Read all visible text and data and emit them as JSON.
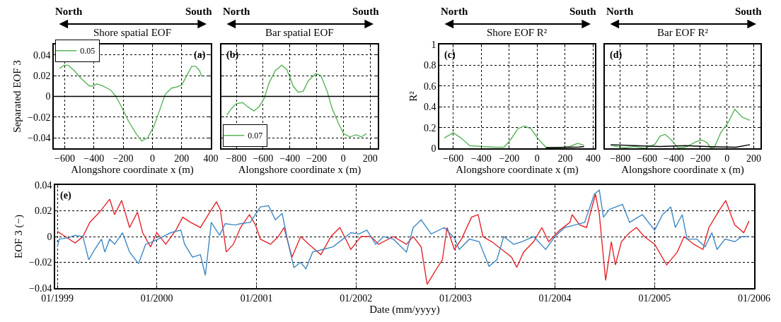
{
  "chart_data": [
    {
      "type": "line",
      "title": "Shore spatial EOF",
      "annotations": [
        "North",
        "South",
        "(a)"
      ],
      "xlabel": "Alongshore coordinate x (m)",
      "ylabel": "Separated EOF 3",
      "xlim": [
        -675,
        400
      ],
      "xticks": [
        -600,
        -400,
        -200,
        0,
        200,
        400
      ],
      "ylim": [
        -0.05,
        0.05
      ],
      "yticks": [
        -0.04,
        -0.02,
        0,
        0.02,
        0.04
      ],
      "grid": true,
      "legend": "top left",
      "ref_lines": [
        {
          "axis": "y",
          "value": 0,
          "color": "#000000"
        }
      ],
      "series": [
        {
          "name": "0.05",
          "color": "#5ab45a",
          "x": [
            -635,
            -605,
            -576,
            -536,
            -493,
            -432,
            -406,
            -380,
            -337,
            -285,
            -250,
            -215,
            -163,
            -111,
            -73,
            -33,
            10,
            53,
            88,
            131,
            166,
            201,
            235,
            270,
            296,
            322,
            339
          ],
          "values": [
            0.027,
            0.03,
            0.03,
            0.025,
            0.018,
            0.01,
            0.01,
            0.012,
            0.01,
            0.006,
            0.0,
            -0.009,
            -0.024,
            -0.036,
            -0.043,
            -0.04,
            -0.029,
            -0.012,
            0.002,
            0.008,
            0.009,
            0.011,
            0.02,
            0.029,
            0.029,
            0.025,
            0.019
          ]
        }
      ]
    },
    {
      "type": "line",
      "title": "Bar spatial EOF",
      "annotations": [
        "North",
        "South",
        "(b)"
      ],
      "xlabel": "Alongshore coordinate x (m)",
      "xlim": [
        -911,
        257
      ],
      "xticks": [
        -800,
        -600,
        -400,
        -200,
        0,
        200
      ],
      "ylim": [
        -0.05,
        0.05
      ],
      "yticks": [
        -0.04,
        -0.02,
        0,
        0.02,
        0.04
      ],
      "grid": true,
      "legend": "bottom left",
      "tick_labels": "x",
      "ref_lines": [
        {
          "axis": "y",
          "value": 0,
          "color": "#000000"
        }
      ],
      "series": [
        {
          "name": "0.07",
          "color": "#5ab45a",
          "x": [
            -870,
            -838,
            -800,
            -753,
            -715,
            -668,
            -630,
            -592,
            -555,
            -508,
            -460,
            -423,
            -375,
            -338,
            -300,
            -262,
            -206,
            -168,
            -121,
            -83,
            -36,
            2,
            49,
            96,
            134,
            172
          ],
          "values": [
            -0.018,
            -0.012,
            -0.007,
            -0.006,
            -0.01,
            -0.014,
            -0.01,
            -0.002,
            0.013,
            0.025,
            0.03,
            0.026,
            0.01,
            0.004,
            0.005,
            0.015,
            0.022,
            0.02,
            0.005,
            -0.012,
            -0.026,
            -0.036,
            -0.039,
            -0.037,
            -0.039,
            -0.036
          ]
        }
      ]
    },
    {
      "type": "line",
      "title": "Shore EOF R²",
      "annotations": [
        "North",
        "South",
        "(c)"
      ],
      "xlabel": "Alongshore coordinate x (m)",
      "ylabel": "R²",
      "xlim": [
        -700,
        413
      ],
      "xticks": [
        -600,
        -400,
        -200,
        0,
        200,
        400
      ],
      "ylim": [
        0,
        1
      ],
      "yticks": [
        0,
        0.2,
        0.4,
        0.6,
        0.8,
        1
      ],
      "grid": true,
      "series": [
        {
          "color": "#5ab45a",
          "x": [
            -664,
            -600,
            -546,
            -482,
            -391,
            -301,
            -237,
            -192,
            -137,
            -92,
            -46,
            8,
            62,
            153,
            235,
            289,
            335
          ],
          "values": [
            0.1,
            0.15,
            0.1,
            0.025,
            0.017,
            0.01,
            0.01,
            0.08,
            0.19,
            0.215,
            0.19,
            0.09,
            0.01,
            0.005,
            0.017,
            0.047,
            0.03
          ]
        },
        {
          "color": "#000000",
          "x": [
            62,
            150,
            244,
            300,
            335
          ],
          "values": [
            0.005,
            0.008,
            0.01,
            0.012,
            0.017
          ]
        }
      ]
    },
    {
      "type": "line",
      "title": "Bar EOF R²",
      "annotations": [
        "North",
        "South",
        "(d)"
      ],
      "xlabel": "Alongshore coordinate x (m)",
      "xlim": [
        -916,
        251
      ],
      "xticks": [
        -800,
        -600,
        -400,
        -200,
        0,
        200
      ],
      "ylim": [
        0,
        1
      ],
      "yticks": [
        0,
        0.2,
        0.4,
        0.6,
        0.8,
        1
      ],
      "grid": true,
      "tick_labels": "x",
      "series": [
        {
          "color": "#5ab45a",
          "x": [
            -872,
            -825,
            -768,
            -692,
            -616,
            -540,
            -502,
            -464,
            -417,
            -369,
            -312,
            -236,
            -189,
            -151,
            -123,
            -94,
            -47,
            10,
            58,
            114,
            172
          ],
          "values": [
            0.03,
            0.017,
            0.005,
            0.017,
            0.0,
            0.04,
            0.116,
            0.134,
            0.08,
            0.005,
            0.01,
            0.06,
            0.08,
            0.055,
            0.005,
            0.01,
            0.15,
            0.25,
            0.376,
            0.3,
            0.27
          ]
        },
        {
          "color": "#000000",
          "x": [
            -872,
            -692,
            -502,
            -312,
            -123,
            67,
            172
          ],
          "values": [
            0.035,
            0.025,
            0.017,
            0.025,
            0.015,
            0.01,
            0.035
          ]
        }
      ]
    },
    {
      "type": "line",
      "annotations": [
        "(e)"
      ],
      "xlabel": "Date (mm/yyyy)",
      "ylabel": "EOF 3 (−)",
      "xlim": [
        "1998-12-24",
        "2006-01-01"
      ],
      "xticks": [
        {
          "value": "1999-01-01",
          "label": "01/1999"
        },
        {
          "value": "2000-01-01",
          "label": "01/2000"
        },
        {
          "value": "2001-01-01",
          "label": "01/2001"
        },
        {
          "value": "2002-01-01",
          "label": "01/2002"
        },
        {
          "value": "2003-01-01",
          "label": "01/2003"
        },
        {
          "value": "2004-01-01",
          "label": "01/2004"
        },
        {
          "value": "2005-01-01",
          "label": "01/2005"
        },
        {
          "value": "2006-01-01",
          "label": "01/2006"
        }
      ],
      "ylim": [
        -0.04,
        0.04
      ],
      "yticks": [
        -0.04,
        -0.02,
        0,
        0.02,
        0.04
      ],
      "grid": true,
      "series": [
        {
          "color": "#e3262b",
          "x": [
            "1999-01-01",
            "1999-01-30",
            "1999-03-07",
            "1999-04-05",
            "1999-04-30",
            "1999-06-05",
            "1999-07-12",
            "1999-07-30",
            "1999-08-25",
            "1999-09-23",
            "1999-10-22",
            "1999-11-10",
            "1999-12-09",
            "2000-01-01",
            "2000-02-03",
            "2000-03-11",
            "2000-04-05",
            "2000-05-04",
            "2000-06-09",
            "2000-07-08",
            "2000-08-07",
            "2000-08-21",
            "2000-09-12",
            "2000-10-08",
            "2000-11-03",
            "2000-12-06",
            "2000-12-28",
            "2001-01-15",
            "2001-02-21",
            "2001-03-22",
            "2001-04-12",
            "2001-05-11",
            "2001-06-12",
            "2001-07-12",
            "2001-08-25",
            "2001-10-01",
            "2001-11-03",
            "2001-12-13",
            "2002-01-19",
            "2002-02-25",
            "2002-03-25",
            "2002-05-18",
            "2002-07-05",
            "2002-07-30",
            "2002-08-28",
            "2002-09-19",
            "2002-10-15",
            "2002-11-14",
            "2002-12-01",
            "2002-12-28",
            "2003-01-23",
            "2003-03-01",
            "2003-03-25",
            "2003-04-12",
            "2003-05-14",
            "2003-06-20",
            "2003-07-26",
            "2003-08-14",
            "2003-09-08",
            "2003-10-15",
            "2003-11-14",
            "2003-12-09",
            "2004-01-19",
            "2004-02-25",
            "2004-03-04",
            "2004-04-01",
            "2004-04-26",
            "2004-05-29",
            "2004-06-12",
            "2004-07-05",
            "2004-07-26",
            "2004-08-10",
            "2004-09-01",
            "2004-10-01",
            "2004-10-26",
            "2004-11-24",
            "2005-01-01",
            "2005-02-14",
            "2005-03-25",
            "2005-04-19",
            "2005-05-25",
            "2005-06-27",
            "2005-07-19",
            "2005-08-28",
            "2005-09-19",
            "2005-10-04",
            "2005-10-22",
            "2005-11-24",
            "2005-12-13"
          ],
          "values": [
            0.004,
            0.0,
            -0.005,
            0.0,
            0.011,
            0.019,
            0.029,
            0.017,
            0.028,
            0.007,
            0.019,
            0.003,
            -0.008,
            0.003,
            -0.006,
            0.005,
            0.015,
            0.011,
            0.007,
            0.017,
            0.027,
            0.021,
            -0.012,
            -0.006,
            0.007,
            0.017,
            0.009,
            -0.002,
            -0.006,
            0.0,
            0.007,
            -0.016,
            0.0,
            -0.006,
            -0.014,
            0.0,
            0.007,
            -0.01,
            0.0,
            0.0,
            -0.006,
            0.0,
            -0.006,
            0.0,
            -0.008,
            -0.037,
            -0.028,
            -0.018,
            0.007,
            -0.01,
            -0.002,
            0.015,
            0.017,
            0.0,
            -0.004,
            -0.01,
            -0.016,
            -0.024,
            -0.012,
            -0.004,
            0.007,
            -0.004,
            0.005,
            0.011,
            0.017,
            0.009,
            0.007,
            0.033,
            0.017,
            -0.034,
            -0.004,
            -0.022,
            -0.004,
            0.003,
            0.007,
            0.0,
            -0.006,
            -0.022,
            -0.012,
            0.0,
            -0.006,
            -0.01,
            0.007,
            0.021,
            0.028,
            0.019,
            0.009,
            0.003,
            0.012
          ]
        },
        {
          "color": "#3f88c5",
          "x": [
            "1999-01-01",
            "1999-01-08",
            "1999-02-10",
            "1999-03-07",
            "1999-04-05",
            "1999-04-26",
            "1999-05-18",
            "1999-06-12",
            "1999-06-24",
            "1999-07-12",
            "1999-07-30",
            "1999-08-28",
            "1999-09-23",
            "1999-10-26",
            "1999-11-21",
            "1999-12-16",
            "2000-01-15",
            "2000-02-21",
            "2000-03-29",
            "2000-04-12",
            "2000-05-11",
            "2000-06-09",
            "2000-06-27",
            "2000-07-19",
            "2000-08-18",
            "2000-09-08",
            "2000-10-15",
            "2000-11-03",
            "2000-12-09",
            "2001-01-15",
            "2001-02-14",
            "2001-03-11",
            "2001-04-05",
            "2001-04-26",
            "2001-05-18",
            "2001-06-12",
            "2001-07-01",
            "2001-07-26",
            "2001-09-01",
            "2001-10-08",
            "2001-11-14",
            "2001-12-13",
            "2002-01-12",
            "2002-02-10",
            "2002-03-14",
            "2002-04-12",
            "2002-05-18",
            "2002-07-05",
            "2002-07-30",
            "2002-08-28",
            "2002-10-04",
            "2002-11-21",
            "2002-12-28",
            "2003-01-15",
            "2003-02-21",
            "2003-03-29",
            "2003-05-04",
            "2003-06-02",
            "2003-06-27",
            "2003-08-03",
            "2003-09-01",
            "2003-10-15",
            "2003-11-28",
            "2004-01-01",
            "2004-02-06",
            "2004-03-14",
            "2004-04-19",
            "2004-05-25",
            "2004-06-12",
            "2004-06-27",
            "2004-07-19",
            "2004-09-05",
            "2004-10-01",
            "2004-11-17",
            "2005-01-01",
            "2005-01-30",
            "2005-03-01",
            "2005-03-18",
            "2005-04-12",
            "2005-04-30",
            "2005-06-05",
            "2005-07-05",
            "2005-07-30",
            "2005-08-18",
            "2005-09-16",
            "2005-10-22",
            "2005-11-17",
            "2005-12-13"
          ],
          "values": [
            -0.008,
            -0.002,
            -0.001,
            0.001,
            0.0,
            -0.018,
            -0.01,
            -0.002,
            -0.012,
            -0.002,
            -0.006,
            0.003,
            -0.012,
            -0.021,
            -0.006,
            -0.004,
            -0.001,
            0.003,
            0.005,
            -0.006,
            -0.016,
            -0.014,
            -0.03,
            0.011,
            0.001,
            0.01,
            0.009,
            0.01,
            0.011,
            0.023,
            0.024,
            0.013,
            0.018,
            -0.004,
            -0.024,
            -0.02,
            -0.025,
            -0.012,
            -0.01,
            -0.008,
            -0.002,
            0.003,
            0.002,
            0.005,
            -0.006,
            0.0,
            -0.002,
            -0.012,
            0.007,
            0.013,
            0.002,
            0.007,
            -0.001,
            -0.01,
            -0.002,
            -0.004,
            -0.023,
            -0.018,
            0.0,
            -0.006,
            -0.004,
            0.0,
            -0.01,
            0.0,
            0.007,
            0.009,
            0.011,
            0.033,
            0.036,
            0.015,
            0.021,
            0.025,
            0.011,
            0.017,
            0.005,
            0.017,
            0.023,
            0.007,
            0.017,
            -0.002,
            -0.002,
            -0.008,
            0.003,
            -0.01,
            -0.002,
            -0.004,
            0.0,
            0.0
          ]
        }
      ]
    }
  ]
}
